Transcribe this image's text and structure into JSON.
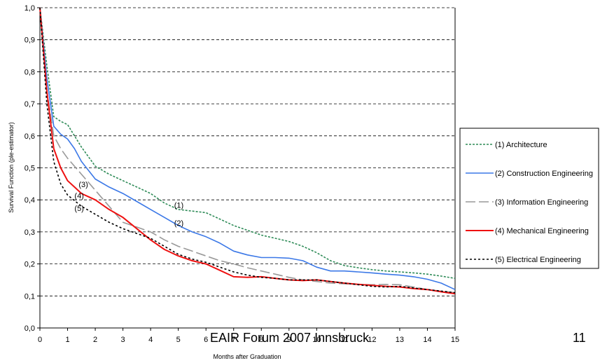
{
  "footer": {
    "text": "EAIR Forum 2007 Innsbruck",
    "page_number": "11"
  },
  "chart_data": {
    "type": "line",
    "title": "",
    "xlabel": "Months after Graduation",
    "ylabel": "Survival Function (ple-estimator)",
    "xlim": [
      0,
      15
    ],
    "ylim": [
      0,
      1
    ],
    "x_ticks": [
      "0",
      "1",
      "2",
      "3",
      "4",
      "5",
      "6",
      "7",
      "8",
      "9",
      "10",
      "11",
      "12",
      "13",
      "14",
      "15"
    ],
    "y_ticks": [
      "0,0",
      "0,1",
      "0,2",
      "0,3",
      "0,4",
      "0,5",
      "0,6",
      "0,7",
      "0,8",
      "0,9",
      "1,0"
    ],
    "grid": "horizontal dashed",
    "legend_position": "right",
    "series": [
      {
        "name": "(1) Architecture",
        "color": "#2e8b57",
        "dash": "3,2",
        "label": "(1)",
        "points": [
          [
            0,
            1.0
          ],
          [
            0.25,
            0.82
          ],
          [
            0.5,
            0.66
          ],
          [
            0.75,
            0.645
          ],
          [
            1,
            0.635
          ],
          [
            1.25,
            0.6
          ],
          [
            1.5,
            0.565
          ],
          [
            2,
            0.505
          ],
          [
            2.5,
            0.48
          ],
          [
            3,
            0.46
          ],
          [
            3.5,
            0.44
          ],
          [
            4,
            0.42
          ],
          [
            4.5,
            0.39
          ],
          [
            5,
            0.37
          ],
          [
            5.5,
            0.365
          ],
          [
            6,
            0.36
          ],
          [
            6.5,
            0.34
          ],
          [
            7,
            0.32
          ],
          [
            7.5,
            0.305
          ],
          [
            8,
            0.29
          ],
          [
            8.5,
            0.28
          ],
          [
            9,
            0.27
          ],
          [
            9.5,
            0.255
          ],
          [
            10,
            0.235
          ],
          [
            10.5,
            0.21
          ],
          [
            11,
            0.195
          ],
          [
            11.5,
            0.188
          ],
          [
            12,
            0.182
          ],
          [
            12.5,
            0.178
          ],
          [
            13,
            0.175
          ],
          [
            13.5,
            0.172
          ],
          [
            14,
            0.168
          ],
          [
            14.5,
            0.162
          ],
          [
            15,
            0.155
          ]
        ]
      },
      {
        "name": "(2) Construction Engineering",
        "color": "#3b78e7",
        "dash": "",
        "label": "(2)",
        "points": [
          [
            0,
            1.0
          ],
          [
            0.25,
            0.78
          ],
          [
            0.5,
            0.63
          ],
          [
            0.75,
            0.605
          ],
          [
            1,
            0.59
          ],
          [
            1.25,
            0.56
          ],
          [
            1.5,
            0.52
          ],
          [
            2,
            0.465
          ],
          [
            2.5,
            0.44
          ],
          [
            3,
            0.42
          ],
          [
            3.5,
            0.395
          ],
          [
            4,
            0.37
          ],
          [
            4.5,
            0.345
          ],
          [
            5,
            0.32
          ],
          [
            5.5,
            0.3
          ],
          [
            6,
            0.285
          ],
          [
            6.5,
            0.265
          ],
          [
            7,
            0.24
          ],
          [
            7.5,
            0.228
          ],
          [
            8,
            0.22
          ],
          [
            8.5,
            0.22
          ],
          [
            9,
            0.218
          ],
          [
            9.5,
            0.21
          ],
          [
            10,
            0.19
          ],
          [
            10.5,
            0.178
          ],
          [
            11,
            0.178
          ],
          [
            11.5,
            0.175
          ],
          [
            12,
            0.172
          ],
          [
            12.5,
            0.168
          ],
          [
            13,
            0.165
          ],
          [
            13.5,
            0.16
          ],
          [
            14,
            0.152
          ],
          [
            14.5,
            0.14
          ],
          [
            15,
            0.12
          ]
        ]
      },
      {
        "name": "(3) Information Engineering",
        "color": "#999999",
        "dash": "14,5",
        "label": "(3)",
        "points": [
          [
            0,
            1.0
          ],
          [
            0.25,
            0.74
          ],
          [
            0.5,
            0.6
          ],
          [
            0.75,
            0.56
          ],
          [
            1,
            0.53
          ],
          [
            1.5,
            0.48
          ],
          [
            2,
            0.43
          ],
          [
            2.5,
            0.38
          ],
          [
            3,
            0.33
          ],
          [
            3.5,
            0.315
          ],
          [
            4,
            0.3
          ],
          [
            4.5,
            0.275
          ],
          [
            5,
            0.255
          ],
          [
            5.5,
            0.24
          ],
          [
            6,
            0.225
          ],
          [
            6.5,
            0.21
          ],
          [
            7,
            0.2
          ],
          [
            7.5,
            0.188
          ],
          [
            8,
            0.178
          ],
          [
            8.5,
            0.168
          ],
          [
            9,
            0.158
          ],
          [
            9.5,
            0.15
          ],
          [
            10,
            0.145
          ],
          [
            10.5,
            0.14
          ],
          [
            11,
            0.138
          ],
          [
            11.5,
            0.136
          ],
          [
            12,
            0.135
          ],
          [
            12.5,
            0.136
          ],
          [
            13,
            0.135
          ],
          [
            13.5,
            0.128
          ],
          [
            14,
            0.12
          ],
          [
            14.5,
            0.115
          ],
          [
            15,
            0.11
          ]
        ]
      },
      {
        "name": "(4) Mechanical Engineering",
        "color": "#ee1111",
        "dash": "",
        "label": "(4)",
        "points": [
          [
            0,
            1.0
          ],
          [
            0.25,
            0.74
          ],
          [
            0.5,
            0.56
          ],
          [
            0.75,
            0.5
          ],
          [
            1,
            0.46
          ],
          [
            1.25,
            0.44
          ],
          [
            1.5,
            0.42
          ],
          [
            2,
            0.4
          ],
          [
            2.5,
            0.37
          ],
          [
            3,
            0.345
          ],
          [
            3.5,
            0.31
          ],
          [
            4,
            0.275
          ],
          [
            4.5,
            0.245
          ],
          [
            5,
            0.225
          ],
          [
            5.5,
            0.21
          ],
          [
            6,
            0.2
          ],
          [
            6.5,
            0.18
          ],
          [
            7,
            0.16
          ],
          [
            7.5,
            0.158
          ],
          [
            8,
            0.16
          ],
          [
            8.5,
            0.155
          ],
          [
            9,
            0.15
          ],
          [
            9.5,
            0.148
          ],
          [
            10,
            0.15
          ],
          [
            10.5,
            0.145
          ],
          [
            11,
            0.14
          ],
          [
            11.5,
            0.136
          ],
          [
            12,
            0.133
          ],
          [
            12.5,
            0.13
          ],
          [
            13,
            0.128
          ],
          [
            13.5,
            0.123
          ],
          [
            14,
            0.12
          ],
          [
            14.5,
            0.113
          ],
          [
            15,
            0.107
          ]
        ]
      },
      {
        "name": "(5) Electrical Engineering",
        "color": "#000000",
        "dash": "3,3",
        "label": "(5)",
        "points": [
          [
            0,
            1.0
          ],
          [
            0.25,
            0.7
          ],
          [
            0.5,
            0.52
          ],
          [
            0.75,
            0.45
          ],
          [
            1,
            0.415
          ],
          [
            1.5,
            0.38
          ],
          [
            2,
            0.355
          ],
          [
            2.5,
            0.33
          ],
          [
            3,
            0.31
          ],
          [
            3.5,
            0.295
          ],
          [
            4,
            0.28
          ],
          [
            4.5,
            0.255
          ],
          [
            5,
            0.23
          ],
          [
            5.5,
            0.215
          ],
          [
            6,
            0.205
          ],
          [
            6.5,
            0.19
          ],
          [
            7,
            0.175
          ],
          [
            7.5,
            0.165
          ],
          [
            8,
            0.158
          ],
          [
            8.5,
            0.155
          ],
          [
            9,
            0.15
          ],
          [
            9.5,
            0.15
          ],
          [
            10,
            0.15
          ],
          [
            10.5,
            0.145
          ],
          [
            11,
            0.14
          ],
          [
            11.5,
            0.135
          ],
          [
            12,
            0.13
          ],
          [
            12.5,
            0.128
          ],
          [
            13,
            0.13
          ],
          [
            13.5,
            0.125
          ],
          [
            14,
            0.12
          ],
          [
            14.5,
            0.115
          ],
          [
            15,
            0.11
          ]
        ]
      }
    ],
    "annotations": [
      {
        "text": "(1)",
        "x": 4.85,
        "y": 0.375
      },
      {
        "text": "(2)",
        "x": 4.85,
        "y": 0.32
      },
      {
        "text": "(3)",
        "x": 1.4,
        "y": 0.44
      },
      {
        "text": "(4)",
        "x": 1.25,
        "y": 0.405
      },
      {
        "text": "(5)",
        "x": 1.25,
        "y": 0.365
      }
    ]
  }
}
